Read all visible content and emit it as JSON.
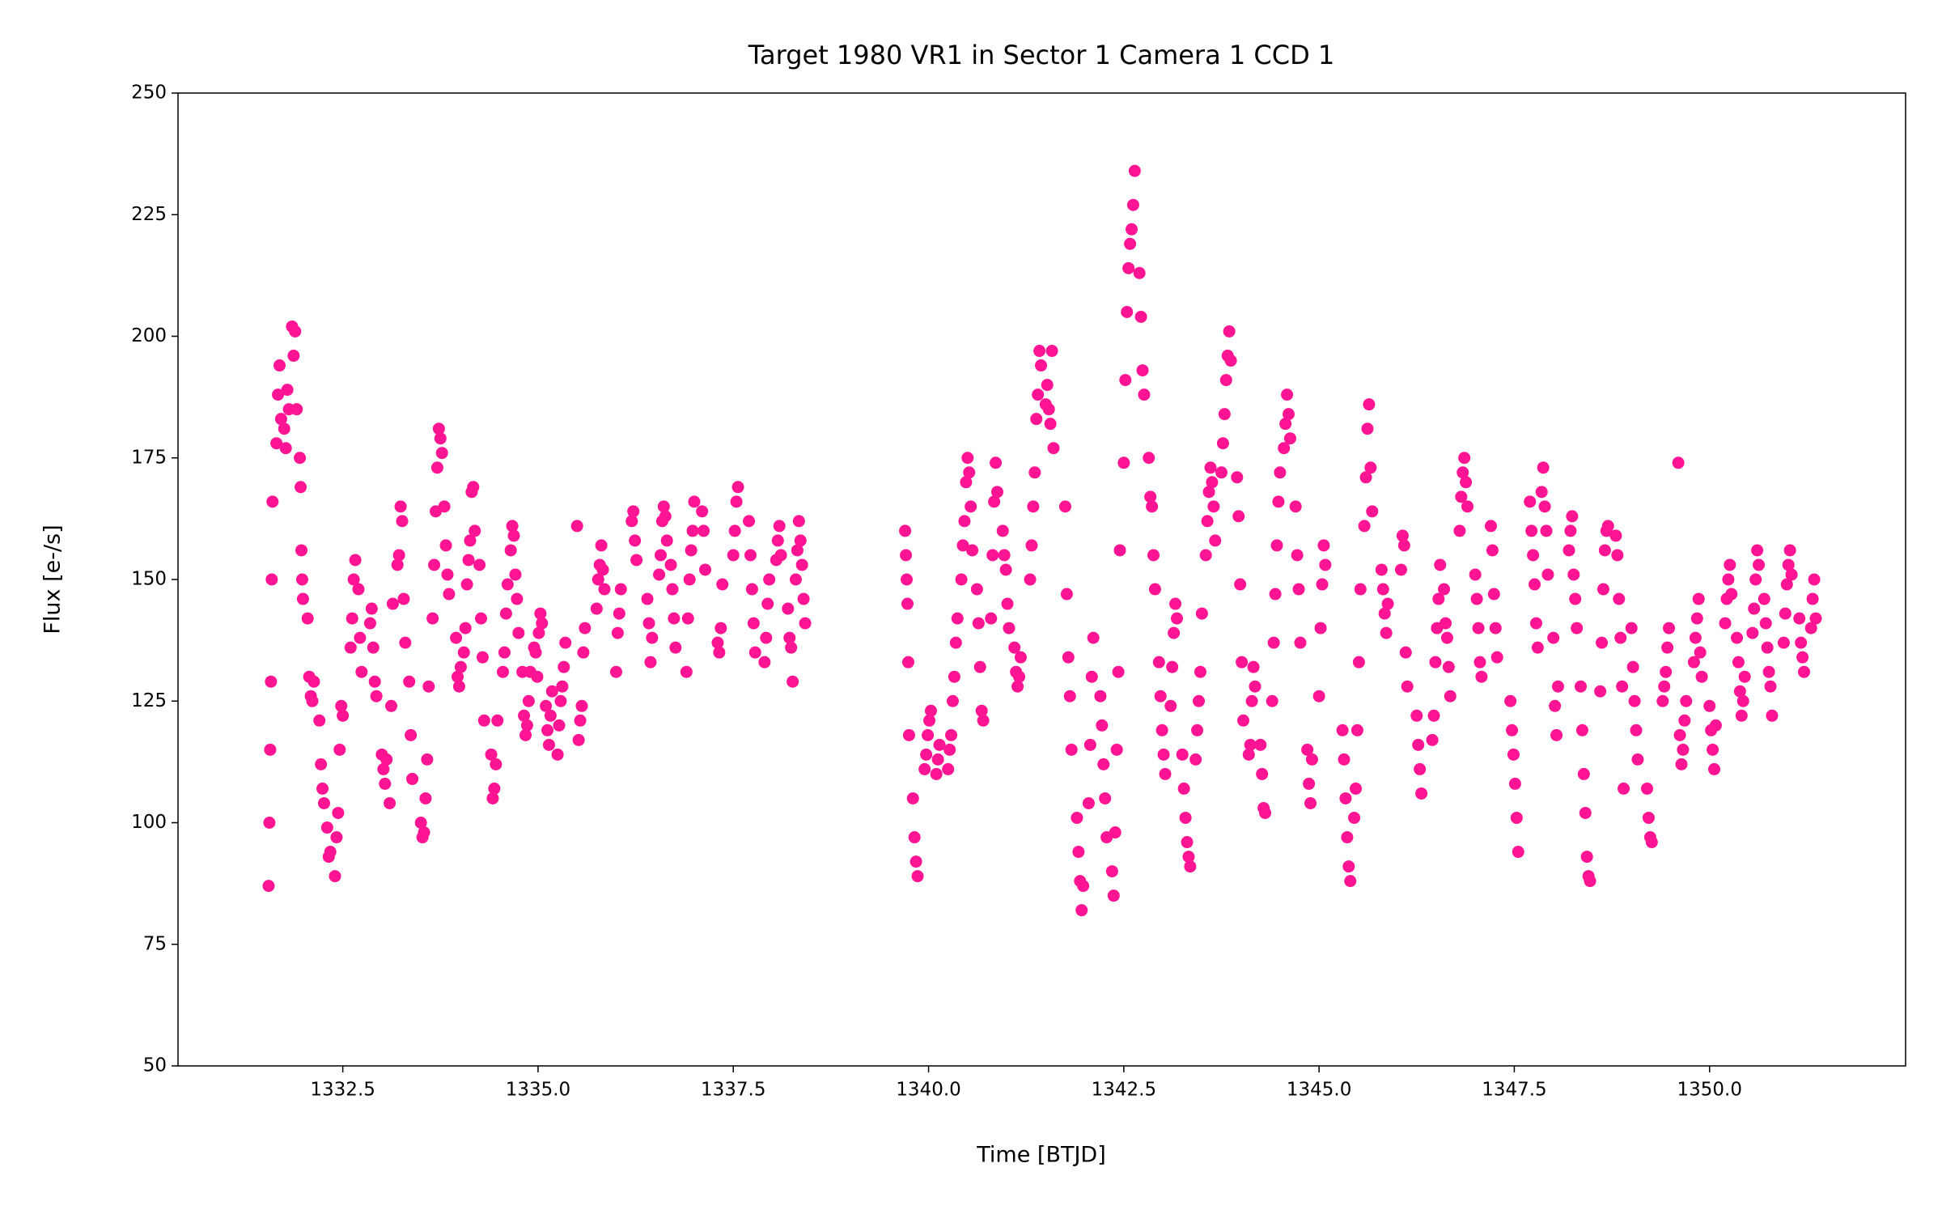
{
  "chart_data": {
    "type": "scatter",
    "title": "Target 1980 VR1 in Sector 1 Camera 1 CCD 1",
    "x_label": "Time [BTJD]",
    "y_label": "Flux [e-/s]",
    "color": "#ff1493",
    "grid": false,
    "xlim": [
      1330.39,
      1352.51
    ],
    "ylim": [
      50,
      250
    ],
    "xticks": [
      1332.5,
      {
        "value": 1335,
        "label": "1335.0"
      },
      1337.5,
      {
        "value": 1340,
        "label": "1340.0"
      },
      1342.5,
      {
        "value": 1345,
        "label": "1345.0"
      },
      1347.5,
      {
        "value": 1350,
        "label": "1350.0"
      }
    ],
    "yticks": [
      50,
      75,
      100,
      125,
      150,
      175,
      200,
      225,
      250
    ],
    "x": [
      1331.55,
      1331.56,
      1331.57,
      1331.58,
      1331.59,
      1331.6,
      1331.65,
      1331.67,
      1331.69,
      1331.71,
      1331.75,
      1331.77,
      1331.79,
      1331.81,
      1331.85,
      1331.87,
      1331.89,
      1331.91,
      1331.95,
      1331.96,
      1331.97,
      1331.98,
      1331.99,
      1332.05,
      1332.07,
      1332.09,
      1332.11,
      1332.13,
      1332.2,
      1332.22,
      1332.24,
      1332.26,
      1332.3,
      1332.32,
      1332.34,
      1332.4,
      1332.42,
      1332.44,
      1332.46,
      1332.48,
      1332.5,
      1332.6,
      1332.62,
      1332.64,
      1332.66,
      1332.7,
      1332.72,
      1332.74,
      1332.85,
      1332.87,
      1332.89,
      1332.91,
      1332.93,
      1333.0,
      1333.02,
      1333.04,
      1333.06,
      1333.1,
      1333.12,
      1333.14,
      1333.2,
      1333.22,
      1333.24,
      1333.26,
      1333.28,
      1333.3,
      1333.35,
      1333.37,
      1333.39,
      1333.5,
      1333.52,
      1333.54,
      1333.56,
      1333.58,
      1333.6,
      1333.65,
      1333.67,
      1333.69,
      1333.71,
      1333.73,
      1333.75,
      1333.77,
      1333.8,
      1333.82,
      1333.84,
      1333.86,
      1333.95,
      1333.97,
      1333.99,
      1334.01,
      1334.05,
      1334.07,
      1334.09,
      1334.11,
      1334.13,
      1334.15,
      1334.17,
      1334.19,
      1334.25,
      1334.27,
      1334.29,
      1334.31,
      1334.4,
      1334.42,
      1334.44,
      1334.46,
      1334.48,
      1334.55,
      1334.57,
      1334.59,
      1334.61,
      1334.65,
      1334.67,
      1334.69,
      1334.71,
      1334.73,
      1334.75,
      1334.8,
      1334.82,
      1334.84,
      1334.86,
      1334.88,
      1334.9,
      1334.95,
      1334.97,
      1334.99,
      1335.01,
      1335.03,
      1335.05,
      1335.1,
      1335.12,
      1335.14,
      1335.16,
      1335.18,
      1335.25,
      1335.27,
      1335.29,
      1335.31,
      1335.33,
      1335.35,
      1335.5,
      1335.52,
      1335.54,
      1335.56,
      1335.58,
      1335.6,
      1335.75,
      1335.77,
      1335.79,
      1335.81,
      1335.83,
      1335.85,
      1336.0,
      1336.02,
      1336.04,
      1336.06,
      1336.2,
      1336.22,
      1336.24,
      1336.26,
      1336.4,
      1336.42,
      1336.44,
      1336.46,
      1336.55,
      1336.57,
      1336.59,
      1336.61,
      1336.63,
      1336.65,
      1336.7,
      1336.72,
      1336.74,
      1336.76,
      1336.9,
      1336.92,
      1336.94,
      1336.96,
      1336.98,
      1337.0,
      1337.1,
      1337.12,
      1337.14,
      1337.3,
      1337.32,
      1337.34,
      1337.36,
      1337.5,
      1337.52,
      1337.54,
      1337.56,
      1337.7,
      1337.72,
      1337.74,
      1337.76,
      1337.78,
      1337.9,
      1337.92,
      1337.94,
      1337.96,
      1338.05,
      1338.07,
      1338.09,
      1338.11,
      1338.2,
      1338.22,
      1338.24,
      1338.26,
      1338.3,
      1338.32,
      1338.34,
      1338.36,
      1338.38,
      1338.4,
      1338.42,
      1339.7,
      1339.71,
      1339.72,
      1339.73,
      1339.74,
      1339.75,
      1339.8,
      1339.82,
      1339.84,
      1339.86,
      1339.95,
      1339.97,
      1339.99,
      1340.01,
      1340.03,
      1340.1,
      1340.12,
      1340.14,
      1340.25,
      1340.27,
      1340.29,
      1340.31,
      1340.33,
      1340.35,
      1340.37,
      1340.42,
      1340.44,
      1340.46,
      1340.48,
      1340.5,
      1340.52,
      1340.54,
      1340.56,
      1340.62,
      1340.64,
      1340.66,
      1340.68,
      1340.7,
      1340.8,
      1340.82,
      1340.84,
      1340.86,
      1340.88,
      1340.95,
      1340.97,
      1340.99,
      1341.01,
      1341.03,
      1341.1,
      1341.12,
      1341.14,
      1341.16,
      1341.18,
      1341.3,
      1341.32,
      1341.34,
      1341.36,
      1341.38,
      1341.4,
      1341.42,
      1341.44,
      1341.5,
      1341.52,
      1341.54,
      1341.56,
      1341.58,
      1341.6,
      1341.75,
      1341.77,
      1341.79,
      1341.81,
      1341.83,
      1341.9,
      1341.92,
      1341.94,
      1341.96,
      1341.98,
      1342.05,
      1342.07,
      1342.09,
      1342.11,
      1342.2,
      1342.22,
      1342.24,
      1342.26,
      1342.28,
      1342.35,
      1342.37,
      1342.39,
      1342.41,
      1342.43,
      1342.45,
      1342.5,
      1342.52,
      1342.54,
      1342.56,
      1342.58,
      1342.6,
      1342.62,
      1342.64,
      1342.7,
      1342.72,
      1342.74,
      1342.76,
      1342.82,
      1342.84,
      1342.86,
      1342.88,
      1342.9,
      1342.95,
      1342.97,
      1342.99,
      1343.01,
      1343.03,
      1343.1,
      1343.12,
      1343.14,
      1343.16,
      1343.18,
      1343.25,
      1343.27,
      1343.29,
      1343.31,
      1343.33,
      1343.35,
      1343.42,
      1343.44,
      1343.46,
      1343.48,
      1343.5,
      1343.55,
      1343.57,
      1343.59,
      1343.61,
      1343.63,
      1343.65,
      1343.67,
      1343.75,
      1343.77,
      1343.79,
      1343.81,
      1343.83,
      1343.85,
      1343.87,
      1343.95,
      1343.97,
      1343.99,
      1344.01,
      1344.03,
      1344.1,
      1344.12,
      1344.14,
      1344.16,
      1344.18,
      1344.25,
      1344.27,
      1344.29,
      1344.31,
      1344.4,
      1344.42,
      1344.44,
      1344.46,
      1344.48,
      1344.5,
      1344.55,
      1344.57,
      1344.59,
      1344.61,
      1344.63,
      1344.7,
      1344.72,
      1344.74,
      1344.76,
      1344.85,
      1344.87,
      1344.89,
      1344.91,
      1345.0,
      1345.02,
      1345.04,
      1345.06,
      1345.08,
      1345.3,
      1345.32,
      1345.34,
      1345.36,
      1345.38,
      1345.4,
      1345.45,
      1345.47,
      1345.49,
      1345.51,
      1345.53,
      1345.58,
      1345.6,
      1345.62,
      1345.64,
      1345.66,
      1345.68,
      1345.8,
      1345.82,
      1345.84,
      1345.86,
      1345.88,
      1346.05,
      1346.07,
      1346.09,
      1346.11,
      1346.13,
      1346.25,
      1346.27,
      1346.29,
      1346.31,
      1346.45,
      1346.47,
      1346.49,
      1346.51,
      1346.53,
      1346.55,
      1346.6,
      1346.62,
      1346.64,
      1346.66,
      1346.68,
      1346.8,
      1346.82,
      1346.84,
      1346.86,
      1346.88,
      1346.9,
      1347.0,
      1347.02,
      1347.04,
      1347.06,
      1347.08,
      1347.2,
      1347.22,
      1347.24,
      1347.26,
      1347.28,
      1347.45,
      1347.47,
      1347.49,
      1347.51,
      1347.53,
      1347.55,
      1347.7,
      1347.72,
      1347.74,
      1347.76,
      1347.78,
      1347.8,
      1347.85,
      1347.87,
      1347.89,
      1347.91,
      1347.93,
      1348.0,
      1348.02,
      1348.04,
      1348.06,
      1348.2,
      1348.22,
      1348.24,
      1348.26,
      1348.28,
      1348.3,
      1348.35,
      1348.37,
      1348.39,
      1348.41,
      1348.43,
      1348.45,
      1348.47,
      1348.6,
      1348.62,
      1348.64,
      1348.66,
      1348.68,
      1348.7,
      1348.8,
      1348.82,
      1348.84,
      1348.86,
      1348.88,
      1348.9,
      1349.0,
      1349.02,
      1349.04,
      1349.06,
      1349.08,
      1349.2,
      1349.22,
      1349.24,
      1349.26,
      1349.4,
      1349.42,
      1349.44,
      1349.46,
      1349.48,
      1349.6,
      1349.62,
      1349.64,
      1349.66,
      1349.68,
      1349.7,
      1349.8,
      1349.82,
      1349.84,
      1349.86,
      1349.88,
      1349.9,
      1350.0,
      1350.02,
      1350.04,
      1350.06,
      1350.08,
      1350.2,
      1350.22,
      1350.24,
      1350.26,
      1350.28,
      1350.35,
      1350.37,
      1350.39,
      1350.41,
      1350.43,
      1350.45,
      1350.55,
      1350.57,
      1350.59,
      1350.61,
      1350.63,
      1350.7,
      1350.72,
      1350.74,
      1350.76,
      1350.78,
      1350.8,
      1350.95,
      1350.97,
      1350.99,
      1351.01,
      1351.03,
      1351.05,
      1351.15,
      1351.17,
      1351.19,
      1351.21,
      1351.3,
      1351.32,
      1351.34,
      1351.36
    ],
    "values": [
      87,
      100,
      115,
      129,
      150,
      166,
      178,
      188,
      194,
      183,
      181,
      177,
      189,
      185,
      202,
      196,
      201,
      185,
      175,
      169,
      156,
      150,
      146,
      142,
      130,
      126,
      125,
      129,
      121,
      112,
      107,
      104,
      99,
      93,
      94,
      89,
      97,
      102,
      115,
      124,
      122,
      136,
      142,
      150,
      154,
      148,
      138,
      131,
      141,
      144,
      136,
      129,
      126,
      114,
      111,
      108,
      113,
      104,
      124,
      145,
      153,
      155,
      165,
      162,
      146,
      137,
      129,
      118,
      109,
      100,
      97,
      98,
      105,
      113,
      128,
      142,
      153,
      164,
      173,
      181,
      179,
      176,
      165,
      157,
      151,
      147,
      138,
      130,
      128,
      132,
      135,
      140,
      149,
      154,
      158,
      168,
      169,
      160,
      153,
      142,
      134,
      121,
      114,
      105,
      107,
      112,
      121,
      131,
      135,
      143,
      149,
      156,
      161,
      159,
      151,
      146,
      139,
      131,
      122,
      118,
      120,
      125,
      131,
      136,
      135,
      130,
      139,
      143,
      141,
      124,
      119,
      116,
      122,
      127,
      114,
      120,
      125,
      128,
      132,
      137,
      161,
      117,
      121,
      124,
      135,
      140,
      144,
      150,
      153,
      157,
      152,
      148,
      131,
      139,
      143,
      148,
      162,
      164,
      158,
      154,
      146,
      141,
      133,
      138,
      151,
      155,
      162,
      165,
      163,
      158,
      153,
      148,
      142,
      136,
      131,
      142,
      150,
      156,
      160,
      166,
      164,
      160,
      152,
      137,
      135,
      140,
      149,
      155,
      160,
      166,
      169,
      162,
      155,
      148,
      141,
      135,
      133,
      138,
      145,
      150,
      154,
      158,
      161,
      155,
      144,
      138,
      136,
      129,
      150,
      156,
      162,
      158,
      153,
      146,
      141,
      160,
      155,
      150,
      145,
      133,
      118,
      105,
      97,
      92,
      89,
      111,
      114,
      118,
      121,
      123,
      110,
      113,
      116,
      111,
      115,
      118,
      125,
      130,
      137,
      142,
      150,
      157,
      162,
      170,
      175,
      172,
      165,
      156,
      148,
      141,
      132,
      123,
      121,
      142,
      155,
      166,
      174,
      168,
      160,
      155,
      152,
      145,
      140,
      136,
      131,
      128,
      130,
      134,
      150,
      157,
      165,
      172,
      183,
      188,
      197,
      194,
      186,
      190,
      185,
      182,
      197,
      177,
      165,
      147,
      134,
      126,
      115,
      101,
      94,
      88,
      82,
      87,
      104,
      116,
      130,
      138,
      126,
      120,
      112,
      105,
      97,
      90,
      85,
      98,
      115,
      131,
      156,
      174,
      191,
      205,
      214,
      219,
      222,
      227,
      234,
      213,
      204,
      193,
      188,
      175,
      167,
      165,
      155,
      148,
      133,
      126,
      119,
      114,
      110,
      124,
      132,
      139,
      145,
      142,
      114,
      107,
      101,
      96,
      93,
      91,
      113,
      119,
      125,
      131,
      143,
      155,
      162,
      168,
      173,
      170,
      165,
      158,
      172,
      178,
      184,
      191,
      196,
      201,
      195,
      171,
      163,
      149,
      133,
      121,
      114,
      116,
      125,
      132,
      128,
      116,
      110,
      103,
      102,
      125,
      137,
      147,
      157,
      166,
      172,
      177,
      182,
      188,
      184,
      179,
      165,
      155,
      148,
      137,
      115,
      108,
      104,
      113,
      126,
      140,
      149,
      157,
      153,
      119,
      113,
      105,
      97,
      91,
      88,
      101,
      107,
      119,
      133,
      148,
      161,
      171,
      181,
      186,
      173,
      164,
      152,
      148,
      143,
      139,
      145,
      152,
      159,
      157,
      135,
      128,
      122,
      116,
      111,
      106,
      117,
      122,
      133,
      140,
      146,
      153,
      148,
      141,
      138,
      132,
      126,
      160,
      167,
      172,
      175,
      170,
      165,
      151,
      146,
      140,
      133,
      130,
      161,
      156,
      147,
      140,
      134,
      125,
      119,
      114,
      108,
      101,
      94,
      166,
      160,
      155,
      149,
      141,
      136,
      168,
      173,
      165,
      160,
      151,
      138,
      124,
      118,
      128,
      156,
      160,
      163,
      151,
      146,
      140,
      128,
      119,
      110,
      102,
      93,
      89,
      88,
      127,
      137,
      148,
      156,
      160,
      161,
      159,
      155,
      146,
      138,
      128,
      107,
      140,
      132,
      125,
      119,
      113,
      107,
      101,
      97,
      96,
      125,
      128,
      131,
      136,
      140,
      174,
      118,
      112,
      115,
      121,
      125,
      133,
      138,
      142,
      146,
      135,
      130,
      124,
      119,
      115,
      111,
      120,
      141,
      146,
      150,
      153,
      147,
      138,
      133,
      127,
      122,
      125,
      130,
      139,
      144,
      150,
      156,
      153,
      146,
      141,
      136,
      131,
      128,
      122,
      137,
      143,
      149,
      153,
      156,
      151,
      142,
      137,
      134,
      131,
      140,
      146,
      150,
      142
    ]
  }
}
